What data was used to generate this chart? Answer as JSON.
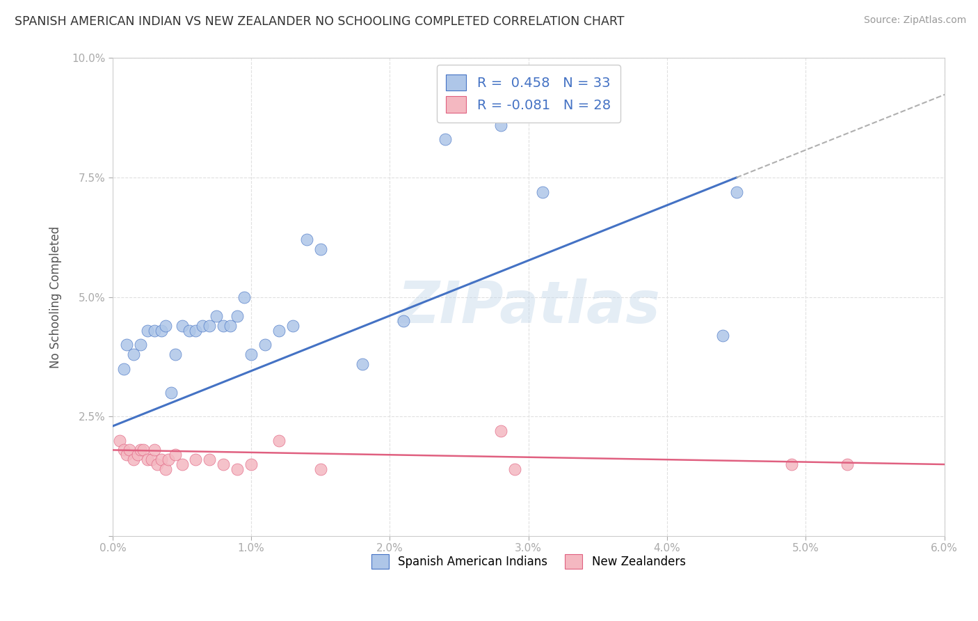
{
  "title": "SPANISH AMERICAN INDIAN VS NEW ZEALANDER NO SCHOOLING COMPLETED CORRELATION CHART",
  "source": "Source: ZipAtlas.com",
  "ylabel": "No Schooling Completed",
  "xlim": [
    0.0,
    0.06
  ],
  "ylim": [
    0.0,
    0.1
  ],
  "xticks": [
    0.0,
    0.01,
    0.02,
    0.03,
    0.04,
    0.05,
    0.06
  ],
  "yticks": [
    0.0,
    0.025,
    0.05,
    0.075,
    0.1
  ],
  "xtick_labels": [
    "0.0%",
    "1.0%",
    "2.0%",
    "3.0%",
    "4.0%",
    "5.0%",
    "6.0%"
  ],
  "ytick_labels": [
    "",
    "2.5%",
    "5.0%",
    "7.5%",
    "10.0%"
  ],
  "blue_color": "#aec6e8",
  "blue_edge": "#4472c4",
  "pink_color": "#f4b8c1",
  "pink_edge": "#e06080",
  "blue_line_color": "#4472c4",
  "pink_line_color": "#e06080",
  "dash_color": "#b0b0b0",
  "legend_upper": [
    {
      "R": " 0.458",
      "N": "33"
    },
    {
      "R": "-0.081",
      "N": "28"
    }
  ],
  "legend_lower": [
    "Spanish American Indians",
    "New Zealanders"
  ],
  "watermark": "ZIPatlas",
  "bg_color": "#ffffff",
  "grid_color": "#e0e0e0",
  "blue_x": [
    0.0008,
    0.001,
    0.0015,
    0.002,
    0.0025,
    0.003,
    0.0035,
    0.0038,
    0.0042,
    0.0045,
    0.005,
    0.0055,
    0.006,
    0.0065,
    0.007,
    0.0075,
    0.008,
    0.0085,
    0.009,
    0.0095,
    0.01,
    0.011,
    0.012,
    0.013,
    0.014,
    0.015,
    0.018,
    0.021,
    0.024,
    0.028,
    0.031,
    0.044,
    0.045
  ],
  "blue_y": [
    0.035,
    0.04,
    0.038,
    0.04,
    0.043,
    0.043,
    0.043,
    0.044,
    0.03,
    0.038,
    0.044,
    0.043,
    0.043,
    0.044,
    0.044,
    0.046,
    0.044,
    0.044,
    0.046,
    0.05,
    0.038,
    0.04,
    0.043,
    0.044,
    0.062,
    0.06,
    0.036,
    0.045,
    0.083,
    0.086,
    0.072,
    0.042,
    0.072
  ],
  "pink_x": [
    0.0005,
    0.0008,
    0.001,
    0.0012,
    0.0015,
    0.0018,
    0.002,
    0.0022,
    0.0025,
    0.0028,
    0.003,
    0.0032,
    0.0035,
    0.0038,
    0.004,
    0.0045,
    0.005,
    0.006,
    0.007,
    0.008,
    0.009,
    0.01,
    0.012,
    0.015,
    0.028,
    0.029,
    0.049,
    0.053
  ],
  "pink_y": [
    0.02,
    0.018,
    0.017,
    0.018,
    0.016,
    0.017,
    0.018,
    0.018,
    0.016,
    0.016,
    0.018,
    0.015,
    0.016,
    0.014,
    0.016,
    0.017,
    0.015,
    0.016,
    0.016,
    0.015,
    0.014,
    0.015,
    0.02,
    0.014,
    0.022,
    0.014,
    0.015,
    0.015
  ],
  "blue_line_start_y": 0.023,
  "blue_line_x0": 0.0,
  "blue_line_x1": 0.045,
  "blue_line_y1": 0.075,
  "pink_line_start_y": 0.018,
  "pink_line_x0": 0.0,
  "pink_line_x1": 0.06,
  "pink_line_y1": 0.015
}
